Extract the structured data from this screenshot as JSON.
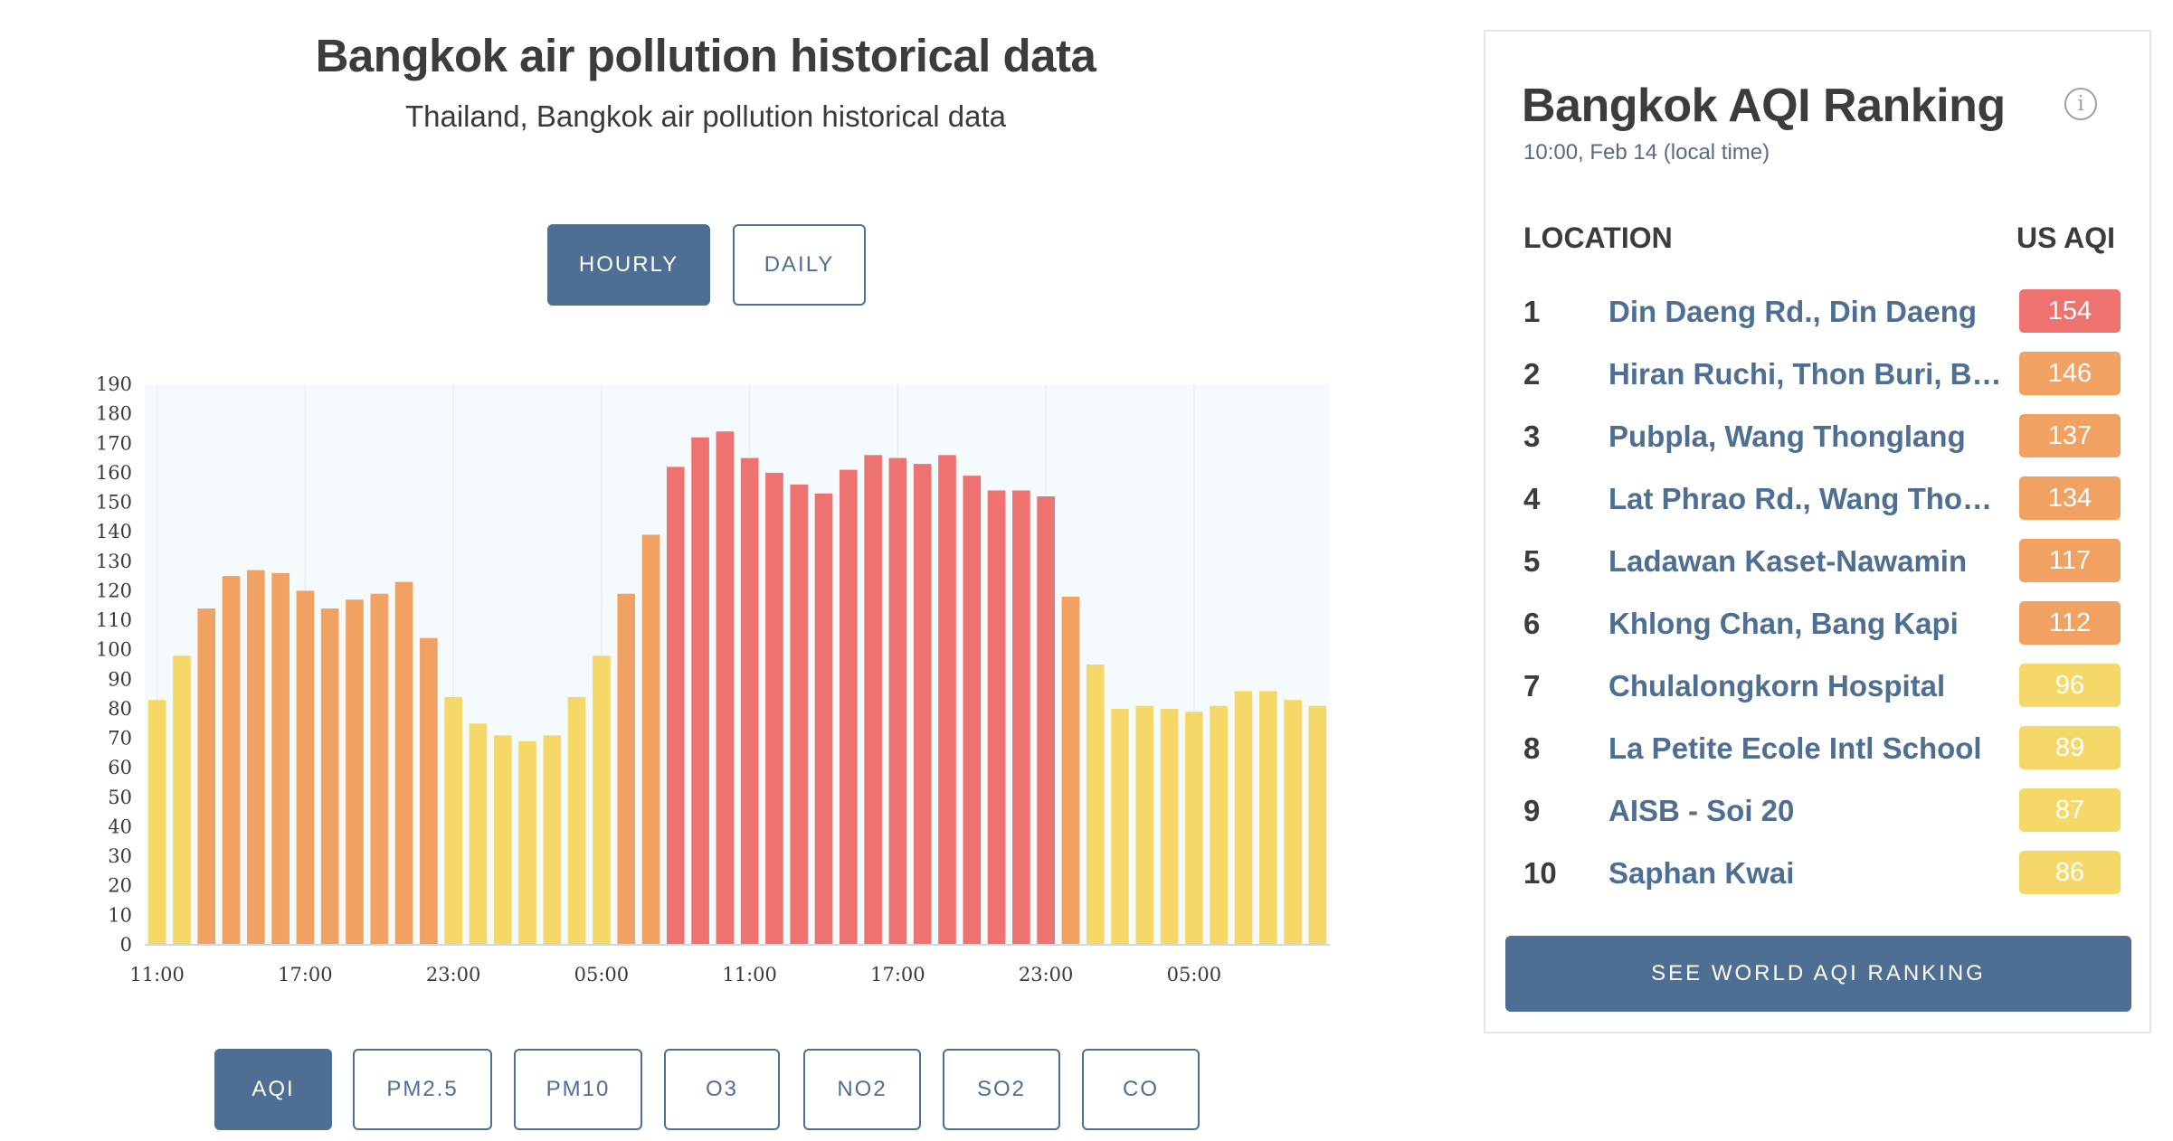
{
  "history": {
    "title": "Bangkok air pollution historical data",
    "subtitle": "Thailand, Bangkok air pollution historical data",
    "range_buttons": [
      {
        "label": "HOURLY",
        "active": true
      },
      {
        "label": "DAILY",
        "active": false
      }
    ],
    "pollutant_buttons": [
      {
        "label": "AQI",
        "active": true
      },
      {
        "label": "PM2.5",
        "active": false
      },
      {
        "label": "PM10",
        "active": false
      },
      {
        "label": "O3",
        "active": false
      },
      {
        "label": "NO2",
        "active": false
      },
      {
        "label": "SO2",
        "active": false
      },
      {
        "label": "CO",
        "active": false
      }
    ]
  },
  "chart_data": {
    "type": "bar",
    "title": "",
    "xlabel": "",
    "ylabel": "",
    "ylim": [
      0,
      190
    ],
    "yticks": [
      0,
      10,
      20,
      30,
      40,
      50,
      60,
      70,
      80,
      90,
      100,
      110,
      120,
      130,
      140,
      150,
      160,
      170,
      180,
      190
    ],
    "x_tick_labels": [
      {
        "label": "11:00",
        "index": 0
      },
      {
        "label": "17:00",
        "index": 6
      },
      {
        "label": "23:00",
        "index": 12
      },
      {
        "label": "05:00",
        "index": 18
      },
      {
        "label": "11:00",
        "index": 24
      },
      {
        "label": "17:00",
        "index": 30
      },
      {
        "label": "23:00",
        "index": 36
      },
      {
        "label": "05:00",
        "index": 42
      }
    ],
    "values": [
      83,
      98,
      114,
      125,
      127,
      126,
      120,
      114,
      117,
      119,
      123,
      104,
      84,
      75,
      71,
      69,
      71,
      84,
      98,
      119,
      139,
      162,
      172,
      174,
      165,
      160,
      156,
      153,
      161,
      166,
      165,
      163,
      166,
      159,
      154,
      154,
      152,
      118,
      95,
      80,
      81,
      80,
      79,
      81,
      86,
      86,
      83,
      81
    ],
    "grid": true,
    "legend": "none",
    "colors": {
      "good_moderate": "#f5d867",
      "unhealthy_sensitive": "#f1a262",
      "unhealthy": "#ed7270",
      "plot_bg": "#f5fafc"
    }
  },
  "ranking": {
    "title": "Bangkok AQI Ranking",
    "time": "10:00, Feb 14 (local time)",
    "col_location": "LOCATION",
    "col_aqi": "US AQI",
    "rows": [
      {
        "rank": "1",
        "name": "Din Daeng Rd., Din Daeng",
        "aqi": "154",
        "color": "#ed7270"
      },
      {
        "rank": "2",
        "name": "Hiran Ruchi, Thon Buri, Bangkok",
        "aqi": "146",
        "color": "#f1a262"
      },
      {
        "rank": "3",
        "name": "Pubpla, Wang Thonglang",
        "aqi": "137",
        "color": "#f1a262"
      },
      {
        "rank": "4",
        "name": "Lat Phrao Rd., Wang Thonglang",
        "aqi": "134",
        "color": "#f1a262"
      },
      {
        "rank": "5",
        "name": "Ladawan Kaset-Nawamin",
        "aqi": "117",
        "color": "#f1a262"
      },
      {
        "rank": "6",
        "name": "Khlong Chan, Bang Kapi",
        "aqi": "112",
        "color": "#f1a262"
      },
      {
        "rank": "7",
        "name": "Chulalongkorn Hospital",
        "aqi": "96",
        "color": "#f5d867"
      },
      {
        "rank": "8",
        "name": "La Petite Ecole Intl School",
        "aqi": "89",
        "color": "#f5d867"
      },
      {
        "rank": "9",
        "name": "AISB - Soi 20",
        "aqi": "87",
        "color": "#f5d867"
      },
      {
        "rank": "10",
        "name": "Saphan Kwai",
        "aqi": "86",
        "color": "#f5d867"
      }
    ],
    "world_button": "SEE WORLD AQI RANKING",
    "info_icon": "info-icon"
  }
}
